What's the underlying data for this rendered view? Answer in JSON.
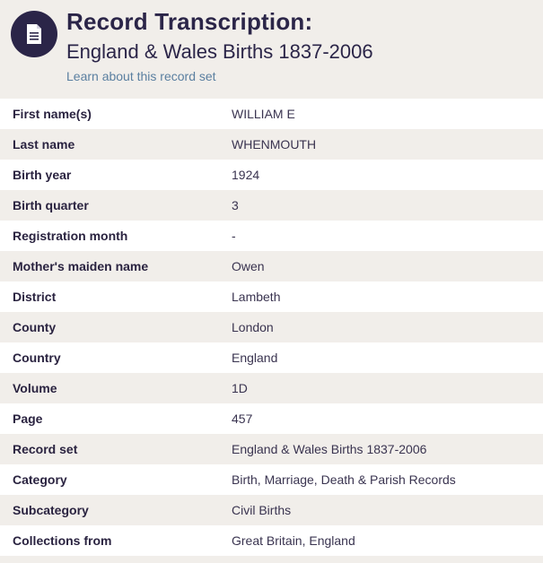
{
  "header": {
    "title": "Record Transcription:",
    "subtitle": "England & Wales Births 1837-2006",
    "learn_link": "Learn about this record set",
    "icon": "document-icon",
    "badge_color": "#2b2548"
  },
  "record": {
    "rows": [
      {
        "label": "First name(s)",
        "value": "WILLIAM E"
      },
      {
        "label": "Last name",
        "value": "WHENMOUTH"
      },
      {
        "label": "Birth year",
        "value": "1924"
      },
      {
        "label": "Birth quarter",
        "value": "3"
      },
      {
        "label": "Registration month",
        "value": "-"
      },
      {
        "label": "Mother's maiden name",
        "value": "Owen"
      },
      {
        "label": "District",
        "value": "Lambeth"
      },
      {
        "label": "County",
        "value": "London"
      },
      {
        "label": "Country",
        "value": "England"
      },
      {
        "label": "Volume",
        "value": "1D"
      },
      {
        "label": "Page",
        "value": "457"
      },
      {
        "label": "Record set",
        "value": "England & Wales Births 1837-2006"
      },
      {
        "label": "Category",
        "value": "Birth, Marriage, Death & Parish Records"
      },
      {
        "label": "Subcategory",
        "value": "Civil Births"
      },
      {
        "label": "Collections from",
        "value": "Great Britain, England"
      }
    ]
  }
}
